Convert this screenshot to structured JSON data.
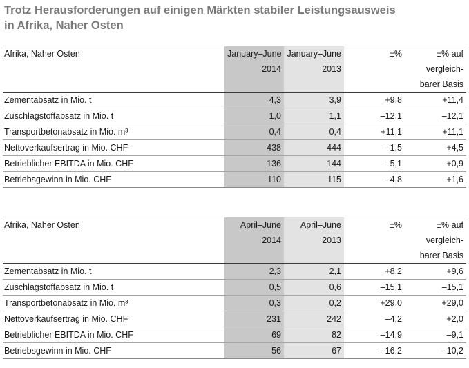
{
  "title": {
    "line1": "Trotz Herausforderungen auf einigen Märkten stabiler Leistungsausweis",
    "line2": "in Afrika, Naher Osten"
  },
  "tables": [
    {
      "region": "Afrika, Naher Osten",
      "col1": [
        "January–June",
        "2014"
      ],
      "col2": [
        "January–June",
        "2013"
      ],
      "col3": [
        "±%"
      ],
      "col4": [
        "±% auf",
        "vergleich-",
        "barer Basis"
      ],
      "rows": [
        {
          "label": "Zementabsatz in Mio. t",
          "v1": "4,3",
          "v2": "3,9",
          "v3": "+9,8",
          "v4": "+11,4"
        },
        {
          "label": "Zuschlagstoffabsatz in Mio. t",
          "v1": "1,0",
          "v2": "1,1",
          "v3": "–12,1",
          "v4": "–12,1"
        },
        {
          "label": "Transportbetonabsatz in Mio. m³",
          "v1": "0,4",
          "v2": "0,4",
          "v3": "+11,1",
          "v4": "+11,1"
        },
        {
          "label": "Nettoverkaufsertrag in Mio. CHF",
          "v1": "438",
          "v2": "444",
          "v3": "–1,5",
          "v4": "+4,5"
        },
        {
          "label": "Betrieblicher EBITDA in Mio. CHF",
          "v1": "136",
          "v2": "144",
          "v3": "–5,1",
          "v4": "+0,9"
        },
        {
          "label": "Betriebsgewinn in Mio. CHF",
          "v1": "110",
          "v2": "115",
          "v3": "–4,8",
          "v4": "+1,6"
        }
      ]
    },
    {
      "region": "Afrika, Naher Osten",
      "col1": [
        "April–June",
        "2014"
      ],
      "col2": [
        "April–June",
        "2013"
      ],
      "col3": [
        "±%"
      ],
      "col4": [
        "±% auf",
        "vergleich-",
        "barer Basis"
      ],
      "rows": [
        {
          "label": "Zementabsatz in Mio. t",
          "v1": "2,3",
          "v2": "2,1",
          "v3": "+8,2",
          "v4": "+9,6"
        },
        {
          "label": "Zuschlagstoffabsatz in Mio. t",
          "v1": "0,5",
          "v2": "0,6",
          "v3": "–15,1",
          "v4": "–15,1"
        },
        {
          "label": "Transportbetonabsatz in Mio. m³",
          "v1": "0,3",
          "v2": "0,2",
          "v3": "+29,0",
          "v4": "+29,0"
        },
        {
          "label": "Nettoverkaufsertrag in Mio. CHF",
          "v1": "231",
          "v2": "242",
          "v3": "–4,2",
          "v4": "+2,0"
        },
        {
          "label": "Betrieblicher EBITDA in Mio. CHF",
          "v1": "69",
          "v2": "82",
          "v3": "–14,9",
          "v4": "–9,1"
        },
        {
          "label": "Betriebsgewinn in Mio. CHF",
          "v1": "56",
          "v2": "67",
          "v3": "–16,2",
          "v4": "–10,2"
        }
      ]
    }
  ]
}
